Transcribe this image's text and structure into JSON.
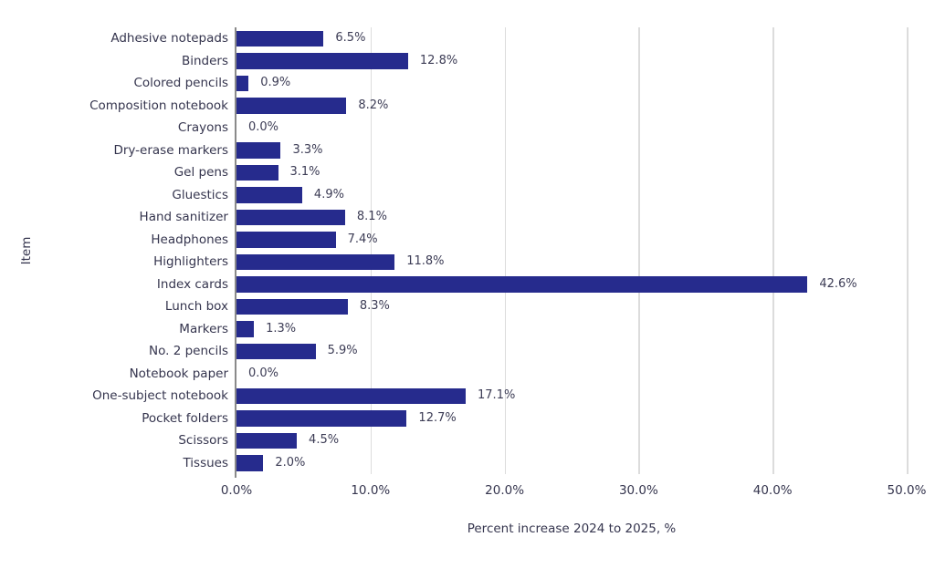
{
  "chart_data": {
    "type": "bar",
    "orientation": "horizontal",
    "xlabel": "Percent increase 2024 to 2025, %",
    "ylabel": "Item",
    "categories": [
      "Adhesive notepads",
      "Binders",
      "Colored pencils",
      "Composition notebook",
      "Crayons",
      "Dry-erase markers",
      "Gel pens",
      "Gluestics",
      "Hand sanitizer",
      "Headphones",
      "Highlighters",
      "Index cards",
      "Lunch box",
      "Markers",
      "No. 2 pencils",
      "Notebook paper",
      "One-subject notebook",
      "Pocket folders",
      "Scissors",
      "Tissues"
    ],
    "values": [
      6.5,
      12.8,
      0.9,
      8.2,
      0.0,
      3.3,
      3.1,
      4.9,
      8.1,
      7.4,
      11.8,
      42.6,
      8.3,
      1.3,
      5.9,
      0.0,
      17.1,
      12.7,
      4.5,
      2.0
    ],
    "value_labels": [
      "6.5%",
      "12.8%",
      "0.9%",
      "8.2%",
      "0.0%",
      "3.3%",
      "3.1%",
      "4.9%",
      "8.1%",
      "7.4%",
      "11.8%",
      "42.6%",
      "8.3%",
      "1.3%",
      "5.9%",
      "0.0%",
      "17.1%",
      "12.7%",
      "4.5%",
      "2.0%"
    ],
    "xlim": [
      0,
      50
    ],
    "x_ticks": [
      "0.0%",
      "10.0%",
      "20.0%",
      "30.0%",
      "40.0%",
      "50.0%"
    ],
    "x_tick_values": [
      0,
      10,
      20,
      30,
      40,
      50
    ],
    "grid": true,
    "legend": "none",
    "bar_color": "#262b8d",
    "text_color": "#35354e",
    "grid_color": "#dcdcdc",
    "axis_color": "#8a8a8a"
  }
}
